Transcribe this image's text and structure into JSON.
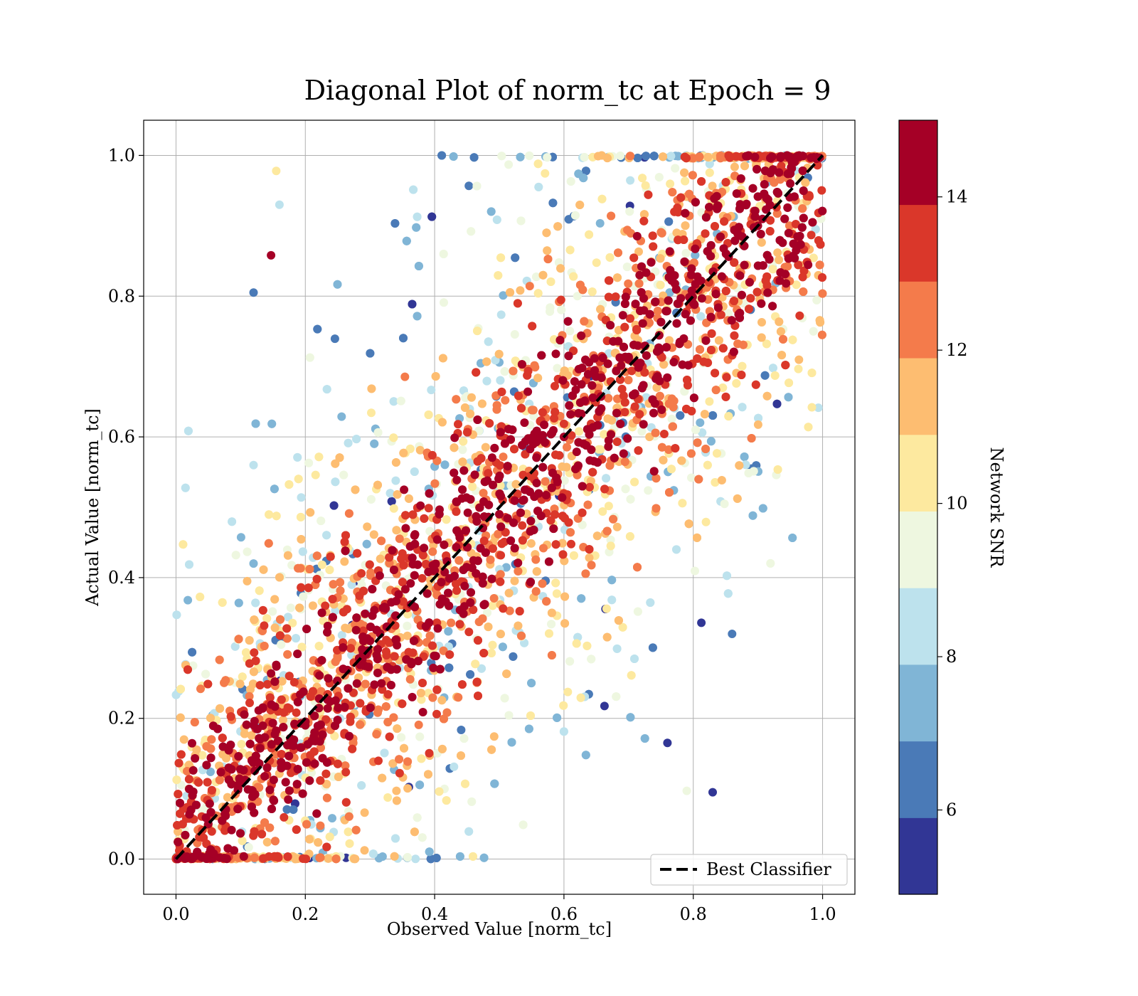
{
  "chart_data": {
    "type": "scatter",
    "title": "Diagonal Plot of norm_tc at Epoch = 9",
    "xlabel": "Observed Value [norm_tc]",
    "ylabel": "Actual Value [norm_tc]",
    "xlim": [
      -0.05,
      1.05
    ],
    "ylim": [
      -0.05,
      1.05
    ],
    "xticks": [
      0.0,
      0.2,
      0.4,
      0.6,
      0.8,
      1.0
    ],
    "yticks": [
      0.0,
      0.2,
      0.4,
      0.6,
      0.8,
      1.0
    ],
    "xtick_labels": [
      "0.0",
      "0.2",
      "0.4",
      "0.6",
      "0.8",
      "1.0"
    ],
    "ytick_labels": [
      "0.0",
      "0.2",
      "0.4",
      "0.6",
      "0.8",
      "1.0"
    ],
    "grid": true,
    "legend": {
      "location": "lower-right",
      "entries": [
        "Best Classifier"
      ]
    },
    "reference_line": {
      "name": "Best Classifier",
      "style": "dashed",
      "color": "#000000",
      "x": [
        0.0,
        1.0
      ],
      "y": [
        0.0,
        1.0
      ]
    },
    "colorbar": {
      "label": "Network SNR",
      "range": [
        4.9,
        15.0
      ],
      "tick_values": [
        6,
        8,
        10,
        12,
        14
      ],
      "tick_labels": [
        "6",
        "8",
        "10",
        "12",
        "14"
      ],
      "bands": [
        {
          "from": 4.9,
          "to": 5.9,
          "color": "#313695"
        },
        {
          "from": 5.9,
          "to": 6.9,
          "color": "#4a7ab7"
        },
        {
          "from": 6.9,
          "to": 7.9,
          "color": "#80b5d6"
        },
        {
          "from": 7.9,
          "to": 8.9,
          "color": "#bde2ed"
        },
        {
          "from": 8.9,
          "to": 9.9,
          "color": "#eef7e0"
        },
        {
          "from": 9.9,
          "to": 10.9,
          "color": "#fde99f"
        },
        {
          "from": 10.9,
          "to": 11.9,
          "color": "#fdbd71"
        },
        {
          "from": 11.9,
          "to": 12.9,
          "color": "#f47b4b"
        },
        {
          "from": 12.9,
          "to": 13.9,
          "color": "#da372a"
        },
        {
          "from": 13.9,
          "to": 15.0,
          "color": "#a50026"
        }
      ]
    },
    "scatter_summary": {
      "colored_by": "Network SNR",
      "high_snr_band_halfwidth": 0.12,
      "max_spread": 0.6,
      "snr_max": 15.0,
      "snr_min": 4.9,
      "sample_points": [
        [
          0.05,
          0.05,
          14.8
        ],
        [
          0.1,
          0.11,
          14.5
        ],
        [
          0.2,
          0.19,
          14.9
        ],
        [
          0.3,
          0.31,
          14.6
        ],
        [
          0.4,
          0.41,
          14.7
        ],
        [
          0.5,
          0.49,
          14.9
        ],
        [
          0.6,
          0.6,
          14.8
        ],
        [
          0.7,
          0.71,
          14.5
        ],
        [
          0.8,
          0.79,
          14.9
        ],
        [
          0.9,
          0.9,
          14.7
        ],
        [
          0.95,
          0.96,
          14.8
        ],
        [
          0.147,
          0.858,
          14.5
        ],
        [
          0.12,
          0.805,
          6.2
        ],
        [
          0.86,
          0.32,
          6.0
        ],
        [
          0.83,
          0.095,
          5.2
        ],
        [
          0.79,
          0.097,
          9.0
        ],
        [
          0.89,
          0.555,
          6.0
        ],
        [
          0.155,
          0.978,
          10.5
        ],
        [
          0.16,
          0.93,
          8.5
        ],
        [
          0.12,
          0.56,
          8.5
        ],
        [
          0.12,
          0.42,
          7.0
        ],
        [
          0.11,
          0.395,
          11.0
        ],
        [
          0.76,
          0.165,
          5.3
        ]
      ]
    }
  }
}
